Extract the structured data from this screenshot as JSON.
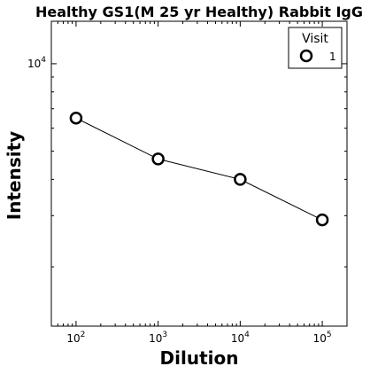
{
  "chart_data": {
    "type": "line",
    "title": "Healthy GS1(M 25 yr Healthy) Rabbit IgG",
    "xlabel": "Dilution",
    "ylabel": "Intensity",
    "x_scale": "log",
    "y_scale": "log",
    "xlim": [
      50,
      200000
    ],
    "ylim": [
      1250,
      14000
    ],
    "x_tick_labels": [
      {
        "value": 100,
        "base": "10",
        "exp": "2"
      },
      {
        "value": 1000,
        "base": "10",
        "exp": "3"
      },
      {
        "value": 10000,
        "base": "10",
        "exp": "4"
      },
      {
        "value": 100000,
        "base": "10",
        "exp": "5"
      }
    ],
    "y_tick_labels": [
      {
        "value": 10000,
        "base": "10",
        "exp": "4"
      }
    ],
    "legend": {
      "title": "Visit",
      "position": "top-right"
    },
    "series": [
      {
        "name": "1",
        "marker": "open-circle",
        "color": "#000000",
        "x": [
          100,
          1000,
          10000,
          100000
        ],
        "y": [
          6500,
          4700,
          4000,
          2900
        ]
      }
    ],
    "grid": false
  }
}
